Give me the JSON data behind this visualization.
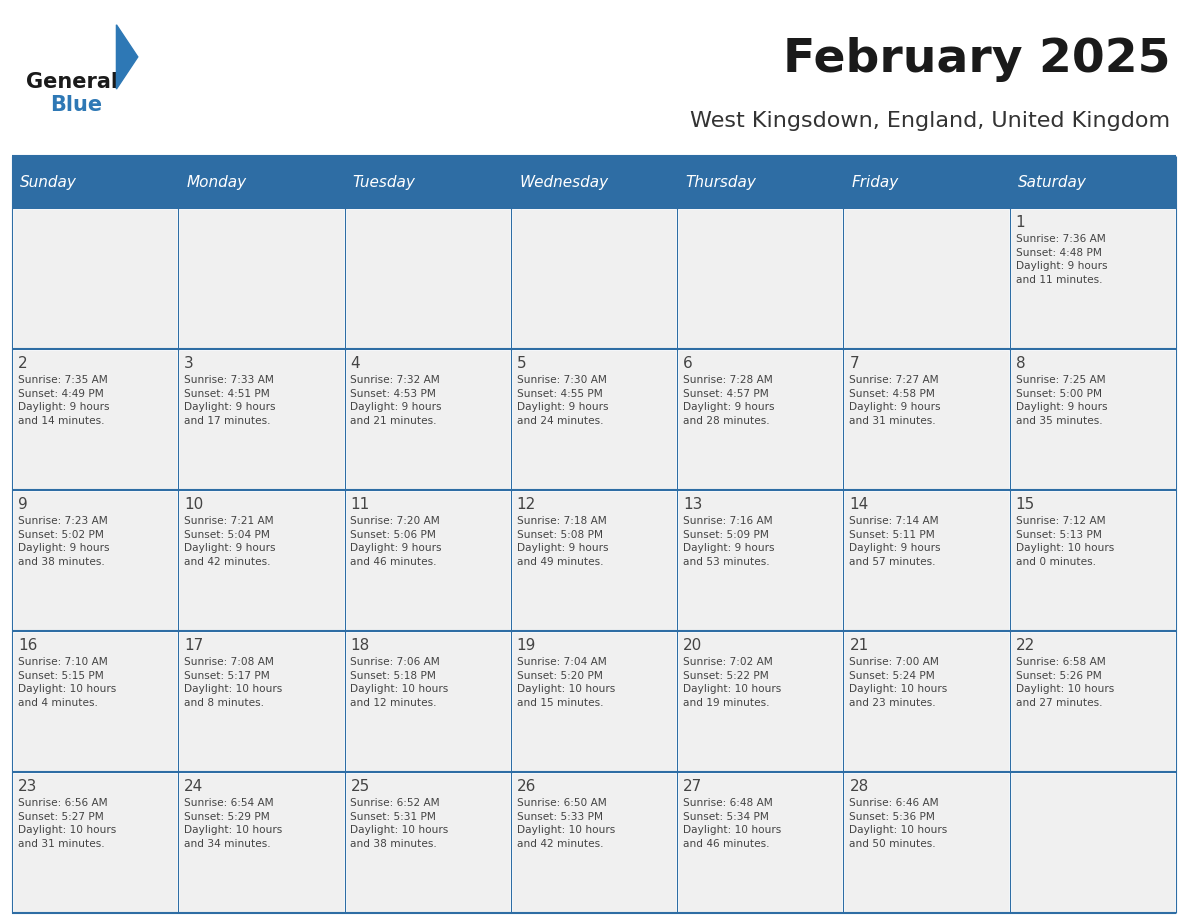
{
  "title": "February 2025",
  "subtitle": "West Kingsdown, England, United Kingdom",
  "days_of_week": [
    "Sunday",
    "Monday",
    "Tuesday",
    "Wednesday",
    "Thursday",
    "Friday",
    "Saturday"
  ],
  "header_bg": "#2E6DA4",
  "header_text": "#FFFFFF",
  "cell_bg_light": "#F0F0F0",
  "border_color": "#2E6DA4",
  "text_color": "#444444",
  "title_color": "#1a1a1a",
  "subtitle_color": "#333333",
  "logo_general_color": "#1a1a1a",
  "logo_blue_color": "#2E78B5",
  "weeks": [
    [
      null,
      null,
      null,
      null,
      null,
      null,
      {
        "day": 1,
        "sunrise": "7:36 AM",
        "sunset": "4:48 PM",
        "daylight": "9 hours\nand 11 minutes."
      }
    ],
    [
      {
        "day": 2,
        "sunrise": "7:35 AM",
        "sunset": "4:49 PM",
        "daylight": "9 hours\nand 14 minutes."
      },
      {
        "day": 3,
        "sunrise": "7:33 AM",
        "sunset": "4:51 PM",
        "daylight": "9 hours\nand 17 minutes."
      },
      {
        "day": 4,
        "sunrise": "7:32 AM",
        "sunset": "4:53 PM",
        "daylight": "9 hours\nand 21 minutes."
      },
      {
        "day": 5,
        "sunrise": "7:30 AM",
        "sunset": "4:55 PM",
        "daylight": "9 hours\nand 24 minutes."
      },
      {
        "day": 6,
        "sunrise": "7:28 AM",
        "sunset": "4:57 PM",
        "daylight": "9 hours\nand 28 minutes."
      },
      {
        "day": 7,
        "sunrise": "7:27 AM",
        "sunset": "4:58 PM",
        "daylight": "9 hours\nand 31 minutes."
      },
      {
        "day": 8,
        "sunrise": "7:25 AM",
        "sunset": "5:00 PM",
        "daylight": "9 hours\nand 35 minutes."
      }
    ],
    [
      {
        "day": 9,
        "sunrise": "7:23 AM",
        "sunset": "5:02 PM",
        "daylight": "9 hours\nand 38 minutes."
      },
      {
        "day": 10,
        "sunrise": "7:21 AM",
        "sunset": "5:04 PM",
        "daylight": "9 hours\nand 42 minutes."
      },
      {
        "day": 11,
        "sunrise": "7:20 AM",
        "sunset": "5:06 PM",
        "daylight": "9 hours\nand 46 minutes."
      },
      {
        "day": 12,
        "sunrise": "7:18 AM",
        "sunset": "5:08 PM",
        "daylight": "9 hours\nand 49 minutes."
      },
      {
        "day": 13,
        "sunrise": "7:16 AM",
        "sunset": "5:09 PM",
        "daylight": "9 hours\nand 53 minutes."
      },
      {
        "day": 14,
        "sunrise": "7:14 AM",
        "sunset": "5:11 PM",
        "daylight": "9 hours\nand 57 minutes."
      },
      {
        "day": 15,
        "sunrise": "7:12 AM",
        "sunset": "5:13 PM",
        "daylight": "10 hours\nand 0 minutes."
      }
    ],
    [
      {
        "day": 16,
        "sunrise": "7:10 AM",
        "sunset": "5:15 PM",
        "daylight": "10 hours\nand 4 minutes."
      },
      {
        "day": 17,
        "sunrise": "7:08 AM",
        "sunset": "5:17 PM",
        "daylight": "10 hours\nand 8 minutes."
      },
      {
        "day": 18,
        "sunrise": "7:06 AM",
        "sunset": "5:18 PM",
        "daylight": "10 hours\nand 12 minutes."
      },
      {
        "day": 19,
        "sunrise": "7:04 AM",
        "sunset": "5:20 PM",
        "daylight": "10 hours\nand 15 minutes."
      },
      {
        "day": 20,
        "sunrise": "7:02 AM",
        "sunset": "5:22 PM",
        "daylight": "10 hours\nand 19 minutes."
      },
      {
        "day": 21,
        "sunrise": "7:00 AM",
        "sunset": "5:24 PM",
        "daylight": "10 hours\nand 23 minutes."
      },
      {
        "day": 22,
        "sunrise": "6:58 AM",
        "sunset": "5:26 PM",
        "daylight": "10 hours\nand 27 minutes."
      }
    ],
    [
      {
        "day": 23,
        "sunrise": "6:56 AM",
        "sunset": "5:27 PM",
        "daylight": "10 hours\nand 31 minutes."
      },
      {
        "day": 24,
        "sunrise": "6:54 AM",
        "sunset": "5:29 PM",
        "daylight": "10 hours\nand 34 minutes."
      },
      {
        "day": 25,
        "sunrise": "6:52 AM",
        "sunset": "5:31 PM",
        "daylight": "10 hours\nand 38 minutes."
      },
      {
        "day": 26,
        "sunrise": "6:50 AM",
        "sunset": "5:33 PM",
        "daylight": "10 hours\nand 42 minutes."
      },
      {
        "day": 27,
        "sunrise": "6:48 AM",
        "sunset": "5:34 PM",
        "daylight": "10 hours\nand 46 minutes."
      },
      {
        "day": 28,
        "sunrise": "6:46 AM",
        "sunset": "5:36 PM",
        "daylight": "10 hours\nand 50 minutes."
      },
      null
    ]
  ]
}
